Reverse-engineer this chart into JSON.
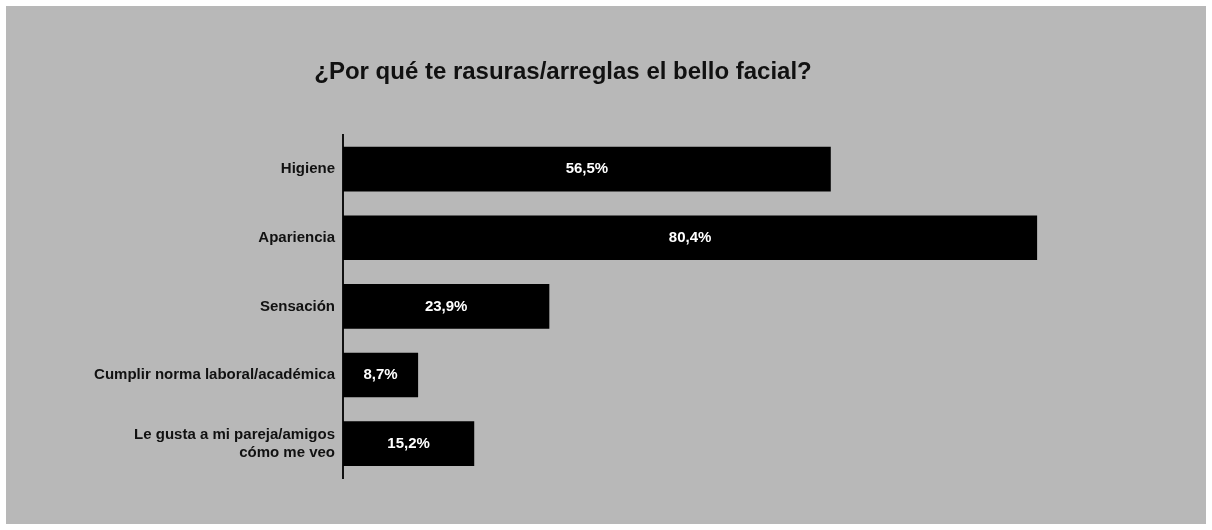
{
  "chart_data": {
    "type": "bar",
    "orientation": "horizontal",
    "title": "¿Por qué te rasuras/arreglas el bello facial?",
    "categories": [
      "Higiene",
      "Apariencia",
      "Sensación",
      "Cumplir norma laboral/académica",
      "Le gusta a mi pareja/amigos cómo me veo"
    ],
    "values": [
      56.5,
      80.4,
      23.9,
      8.7,
      15.2
    ],
    "value_labels": [
      "56,5%",
      "80,4%",
      "23,9%",
      "8,7%",
      "15,2%"
    ],
    "color": "#000000"
  }
}
